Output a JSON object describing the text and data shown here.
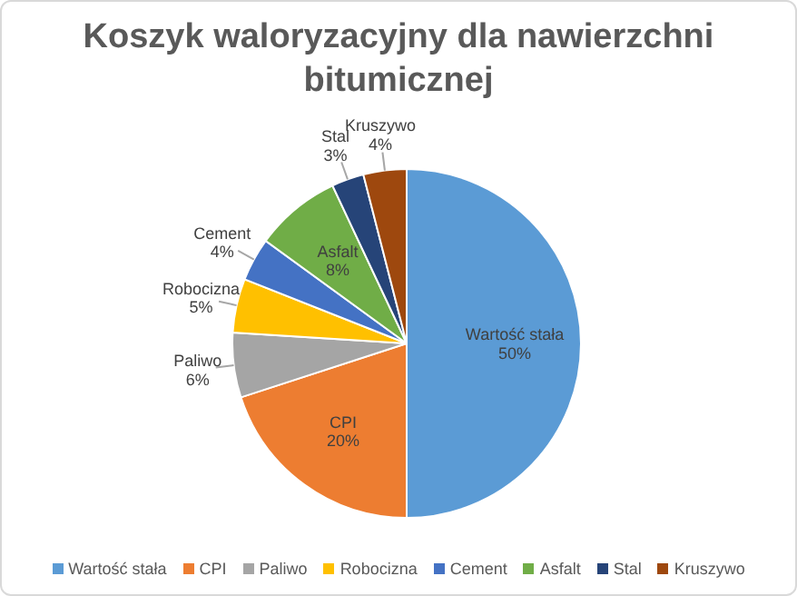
{
  "chart_data": {
    "type": "pie",
    "title": "Koszyk waloryzacyjny dla nawierzchni bitumicznej",
    "categories": [
      "Wartość stała",
      "CPI",
      "Paliwo",
      "Robocizna",
      "Cement",
      "Asfalt",
      "Stal",
      "Kruszywo"
    ],
    "values": [
      50,
      20,
      6,
      5,
      4,
      8,
      3,
      4
    ],
    "colors": [
      "#5b9bd5",
      "#ed7d31",
      "#a5a5a5",
      "#ffc000",
      "#4472c4",
      "#70ad47",
      "#264478",
      "#9e480e"
    ],
    "value_labels": [
      "50%",
      "20%",
      "6%",
      "5%",
      "4%",
      "8%",
      "3%",
      "4%"
    ],
    "legend": "bottom"
  }
}
